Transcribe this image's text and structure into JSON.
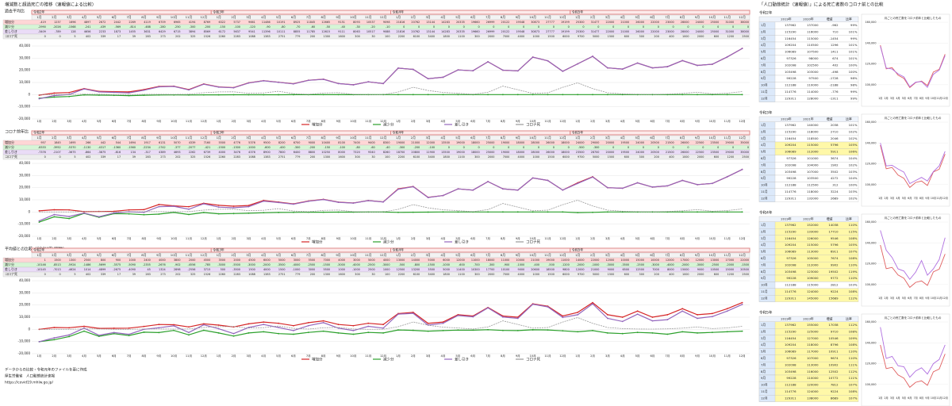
{
  "title": "増減数と超過死亡の推移（速報値による比較）",
  "right_title": "「人口動態統計（速報値）」による死亡者数のコロナ前との比較",
  "footer": [
    "データからの比較・令和元年のファイルを基に作成",
    "厚生労働省　人口動態統計速報",
    "https://covid19.mhlw.go.jp/"
  ],
  "years": [
    "令和2年",
    "令和3年",
    "令和4年",
    "令和5年"
  ],
  "months": [
    "1月",
    "2月",
    "3月",
    "4月",
    "5月",
    "6月",
    "7月",
    "8月",
    "9月",
    "10月",
    "11月",
    "12月",
    "1月",
    "2月",
    "3月",
    "4月",
    "5月",
    "6月",
    "7月",
    "8月",
    "9月",
    "10月",
    "11月",
    "12月",
    "1月",
    "2月",
    "3月",
    "4月",
    "5月",
    "6月",
    "7月",
    "8月",
    "9月",
    "10月",
    "11月",
    "12月",
    "1月",
    "2月",
    "3月",
    "4月",
    "5月",
    "6月",
    "7月",
    "8月",
    "9月",
    "10月",
    "11月",
    "12月"
  ],
  "main_axis": {
    "ylim": [
      -20000,
      40000
    ],
    "yticks": [
      {
        "value": -20000,
        "label": "-20,000"
      },
      {
        "value": -10000,
        "label": "-10,000"
      },
      0,
      {
        "value": 10000,
        "label": "10,000"
      },
      {
        "value": 20000,
        "label": "20,000"
      },
      {
        "value": 30000,
        "label": "30,000"
      },
      {
        "value": 40000,
        "label": "40,000"
      }
    ]
  },
  "covid": {
    "name": "コロナ死",
    "color": "#9a9a9a",
    "values": [
      0,
      0,
      5,
      402,
      339,
      17,
      39,
      283,
      273,
      202,
      325,
      1526,
      2260,
      2283,
      1088,
      1383,
      2751,
      779,
      200,
      1300,
      1600,
      300,
      30,
      100,
      2200,
      6100,
      3400,
      1800,
      1100,
      300,
      2000,
      7000,
      4000,
      1000,
      1500,
      6000,
      9700,
      5000,
      1500,
      600,
      300,
      200,
      400,
      1000,
      2000,
      600,
      1200,
      2500
    ]
  },
  "charts": [
    {
      "type": "line",
      "title": "過去平均比",
      "series": [
        {
          "name": "増加分",
          "color": "#d62728",
          "values": [
            -419,
            1237,
            1696,
            4897,
            2672,
            2442,
            2269,
            4119,
            6709,
            6965,
            4194,
            8769,
            6322,
            5737,
            9661,
            11486,
            10191,
            8925,
            11845,
            12665,
            9151,
            8093,
            10537,
            9098,
            21816,
            20762,
            13144,
            14283,
            20335,
            19660,
            26999,
            20122,
            19548,
            30873,
            27777,
            19199,
            25300,
            31477,
            22000,
            21000,
            26000,
            22000,
            23000,
            28000,
            24000,
            25000,
            31000,
            38000
          ]
        },
        {
          "name": "減少分",
          "color": "#2ca02c",
          "values": [
            -2990,
            -2026,
            -1568,
            -241,
            -439,
            -569,
            -814,
            -488,
            -280,
            -250,
            -300,
            -200,
            -150,
            -100,
            -120,
            -90,
            -80,
            -70,
            -60,
            -50,
            -40,
            -30,
            -20,
            -10,
            0,
            0,
            0,
            0,
            0,
            0,
            0,
            0,
            0,
            0,
            0,
            0,
            0,
            0,
            0,
            0,
            0,
            0,
            0,
            0,
            0,
            0,
            0,
            0
          ]
        },
        {
          "name": "差し引き",
          "color": "#9467bd",
          "values": [
            -3409,
            -789,
            128,
            4656,
            2233,
            1873,
            1455,
            3631,
            6429,
            6715,
            3894,
            8569,
            6172,
            5637,
            9541,
            11396,
            10111,
            8855,
            11785,
            12615,
            9111,
            8063,
            10517,
            9088,
            21816,
            20762,
            13144,
            14283,
            20335,
            19660,
            26999,
            20122,
            19548,
            30873,
            27777,
            19199,
            25300,
            31477,
            22000,
            21000,
            26000,
            22000,
            23000,
            28000,
            24000,
            25000,
            31000,
            38000
          ]
        }
      ]
    },
    {
      "type": "line",
      "title": "コロナ前年比",
      "series": [
        {
          "name": "増加分",
          "color": "#d62728",
          "values": [
            957,
            1845,
            1695,
            266,
            442,
            544,
            1694,
            1917,
            6131,
            5070,
            4339,
            7160,
            5500,
            4776,
            5376,
            9500,
            8200,
            6700,
            9000,
            10400,
            8100,
            7400,
            9400,
            8300,
            19000,
            21000,
            12000,
            13500,
            19000,
            18000,
            25000,
            19000,
            18000,
            28000,
            26000,
            18000,
            24000,
            29000,
            20000,
            19500,
            24000,
            20500,
            21500,
            26000,
            22500,
            23500,
            29000,
            35000
          ]
        },
        {
          "name": "減少分",
          "color": "#2ca02c",
          "values": [
            -8333,
            -3952,
            -5370,
            -1130,
            -4317,
            -1360,
            -1560,
            -2234,
            -1742,
            -377,
            -2077,
            -421,
            -1500,
            -1300,
            -1000,
            -600,
            -400,
            -300,
            -200,
            -150,
            -100,
            -80,
            -60,
            -40,
            -300,
            -200,
            -100,
            0,
            0,
            0,
            0,
            0,
            0,
            0,
            0,
            0,
            -500,
            -300,
            0,
            0,
            0,
            0,
            0,
            0,
            0,
            0,
            0,
            0
          ]
        },
        {
          "name": "差し引き",
          "color": "#9467bd",
          "values": [
            -7376,
            -2107,
            -3675,
            -864,
            -3875,
            -816,
            134,
            -317,
            4389,
            4693,
            2262,
            6739,
            4000,
            3476,
            4376,
            8900,
            7800,
            6400,
            8800,
            10250,
            8000,
            7320,
            9340,
            8260,
            18700,
            20800,
            11900,
            13500,
            19000,
            18000,
            25000,
            19000,
            18000,
            28000,
            26000,
            18000,
            23500,
            28700,
            20000,
            19500,
            24000,
            20500,
            21500,
            26000,
            22500,
            23500,
            29000,
            35000
          ]
        }
      ]
    },
    {
      "type": "line",
      "title": "平均値との比較（GROWTH関数）",
      "series": [
        {
          "name": "増加分",
          "color": "#d62728",
          "values": [
            1,
            1500,
            1300,
            2500,
            800,
            900,
            1000,
            2400,
            4000,
            3800,
            2000,
            4500,
            3500,
            2000,
            4500,
            6000,
            5000,
            3000,
            5500,
            7000,
            4000,
            3000,
            5000,
            4000,
            13000,
            14000,
            5000,
            6000,
            12000,
            11000,
            18000,
            11000,
            10000,
            21000,
            19000,
            11000,
            14000,
            22000,
            12000,
            10000,
            15000,
            10000,
            12000,
            17000,
            12000,
            13000,
            17000,
            22000
          ]
        },
        {
          "name": "減少分",
          "color": "#2ca02c",
          "values": [
            -10146,
            -8513,
            -5924,
            -1486,
            -5699,
            -3575,
            -5090,
            -2355,
            -2676,
            -902,
            -4556,
            -785,
            -3000,
            -5500,
            -3000,
            -2000,
            -3500,
            -4000,
            -2500,
            -1500,
            -3000,
            -4000,
            -2500,
            -3000,
            -500,
            -800,
            -1500,
            -1000,
            -600,
            -700,
            -300,
            -900,
            -1000,
            -400,
            -500,
            -1200,
            -2000,
            -1000,
            -3000,
            -3500,
            -2500,
            -3000,
            -4000,
            -2000,
            -3000,
            -2500,
            -2000,
            -1500
          ]
        },
        {
          "name": "差し引き",
          "color": "#9467bd",
          "values": [
            -10145,
            -7013,
            -4624,
            1014,
            -4899,
            -2675,
            -4090,
            45,
            1324,
            2898,
            -2556,
            3715,
            500,
            -3500,
            1500,
            4000,
            1500,
            -1000,
            3000,
            5500,
            1000,
            -1000,
            2500,
            1000,
            12500,
            13200,
            3500,
            5000,
            11400,
            10300,
            17700,
            10100,
            9000,
            20600,
            18500,
            9800,
            12000,
            21000,
            9000,
            6500,
            12500,
            7000,
            8000,
            15000,
            9000,
            10500,
            15000,
            20500
          ]
        }
      ]
    }
  ],
  "mini_axis": {
    "ylim": [
      90000,
      160000
    ],
    "yticks": [
      {
        "value": 100000,
        "label": "100,000"
      },
      {
        "value": 120000,
        "label": "120,000"
      },
      {
        "value": 140000,
        "label": "140,000"
      },
      {
        "value": 160000,
        "label": "160,000"
      }
    ]
  },
  "mini_caption": "月ごとの死亡数をコロナ前年と比較したもの",
  "blocks": [
    {
      "title": "令和2年",
      "columns": [
        "2019年",
        "2020年",
        "増減",
        "比率"
      ],
      "base_color": "#e06060",
      "color": "#b070e0",
      "base": [
        137962,
        115290,
        116454,
        109204,
        106089,
        97326,
        102098,
        103498,
        99228,
        112188,
        114776,
        129311
      ],
      "values": [
        137000,
        116000,
        115000,
        110500,
        107500,
        98000,
        102500,
        103000,
        97500,
        110000,
        114000,
        128000
      ],
      "diff": [
        -962,
        710,
        -1454,
        1296,
        1411,
        674,
        402,
        -498,
        -1728,
        -2188,
        -776,
        -1311
      ],
      "ratio": [
        "99%",
        "101%",
        "99%",
        "101%",
        "101%",
        "101%",
        "100%",
        "100%",
        "98%",
        "98%",
        "99%",
        "99%"
      ]
    },
    {
      "title": "令和3年",
      "columns": [
        "2019年",
        "2021年",
        "増減",
        "比率"
      ],
      "base_color": "#e06060",
      "color": "#b070e0",
      "base": [
        137962,
        115290,
        116454,
        109204,
        106089,
        97326,
        102098,
        103498,
        99228,
        112188,
        114776,
        129311
      ],
      "values": [
        140000,
        118000,
        118500,
        115000,
        112000,
        101000,
        104000,
        107000,
        103500,
        112500,
        118000,
        132000
      ],
      "diff": [
        2038,
        2710,
        2046,
        5796,
        5911,
        3674,
        1902,
        3502,
        4272,
        312,
        3224,
        2689
      ],
      "ratio": [
        "101%",
        "102%",
        "102%",
        "105%",
        "106%",
        "104%",
        "102%",
        "103%",
        "104%",
        "100%",
        "103%",
        "102%"
      ]
    },
    {
      "title": "令和4年",
      "columns": [
        "2019年",
        "2022年",
        "増減",
        "比率"
      ],
      "base_color": "#e06060",
      "color": "#b070e0",
      "base": [
        137962,
        115290,
        116454,
        109204,
        106089,
        97326,
        102098,
        103498,
        99228,
        112188,
        114776,
        129311
      ],
      "values": [
        152000,
        133000,
        126000,
        115000,
        113000,
        105000,
        112000,
        123000,
        109000,
        115000,
        124000,
        145000
      ],
      "diff": [
        14038,
        17710,
        9546,
        5796,
        6911,
        7674,
        9902,
        19502,
        9772,
        2812,
        9224,
        15689
      ],
      "ratio": [
        "110%",
        "115%",
        "108%",
        "105%",
        "107%",
        "108%",
        "110%",
        "119%",
        "110%",
        "103%",
        "108%",
        "112%"
      ]
    },
    {
      "title": "令和5年",
      "columns": [
        "2019年",
        "2023年",
        "増減",
        "比率"
      ],
      "base_color": "#e06060",
      "color": "#b070e0",
      "base": [
        137962,
        115290,
        116454,
        109204,
        106089,
        97326,
        102098,
        103498,
        99228,
        112188,
        114776,
        129311
      ],
      "values": [
        155000,
        125000,
        127000,
        118000,
        117000,
        107000,
        113000,
        116000,
        110000,
        120000,
        124000,
        138000
      ],
      "diff": [
        17038,
        9710,
        10546,
        8796,
        10911,
        9674,
        10902,
        12502,
        10772,
        7812,
        9224,
        8689
      ],
      "ratio": [
        "112%",
        "108%",
        "109%",
        "108%",
        "110%",
        "110%",
        "111%",
        "112%",
        "111%",
        "107%",
        "108%",
        "107%"
      ]
    }
  ]
}
